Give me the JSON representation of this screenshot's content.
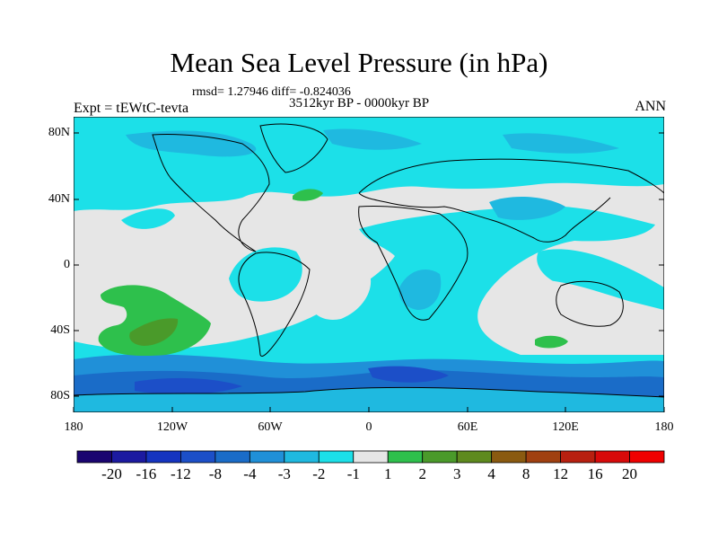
{
  "header": {
    "title": "Mean Sea Level Pressure (in hPa)",
    "stats": "rmsd= 1.27946 diff= -0.824036",
    "period": "3512kyr BP - 0000kyr BP",
    "experiment": "Expt = tEWtC-tevta",
    "season": "ANN"
  },
  "axes": {
    "lat_labels": [
      "80N",
      "40N",
      "0",
      "40S",
      "80S"
    ],
    "lon_labels": [
      "180",
      "120W",
      "60W",
      "0",
      "60E",
      "120E",
      "180"
    ]
  },
  "colorbar": {
    "labels": [
      "-20",
      "-16",
      "-12",
      "-8",
      "-4",
      "-3",
      "-2",
      "-1",
      "1",
      "2",
      "3",
      "4",
      "8",
      "12",
      "16",
      "20"
    ],
    "colors": [
      "#1a0470",
      "#1c1aa0",
      "#1534c0",
      "#1c4fc8",
      "#1a6cc8",
      "#2090d8",
      "#1fb9e0",
      "#1ce0e8",
      "#e6e6e6",
      "#2ec04c",
      "#4a9a2a",
      "#5e8a1e",
      "#8a5a10",
      "#a04010",
      "#b82010",
      "#d80a0a",
      "#f00000"
    ]
  },
  "map": {
    "background_color": "#e6e6e6",
    "regions": [
      {
        "name": "arctic-negative-region",
        "level": "-2"
      },
      {
        "name": "southern-ocean-negative-region",
        "level": "-3"
      },
      {
        "name": "antarctic-coast-strong-negative",
        "level": "-8"
      },
      {
        "name": "south-pacific-positive-region",
        "level": "2"
      },
      {
        "name": "south-pacific-core-positive",
        "level": "3"
      },
      {
        "name": "indian-ocean-positive-region",
        "level": "2"
      },
      {
        "name": "north-atlantic-positive-region",
        "level": "2"
      }
    ]
  }
}
